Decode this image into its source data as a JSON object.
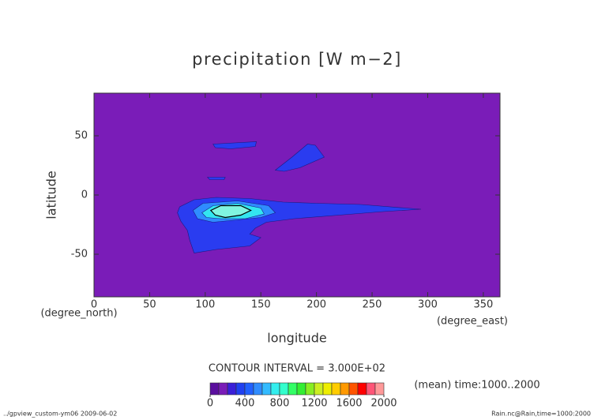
{
  "chart_data": {
    "type": "contour",
    "title": "precipitation [W m−2]",
    "x_label": "longitude",
    "y_label": "latitude",
    "x_unit": "(degree_east)",
    "y_unit": "(degree_north)",
    "xlim": [
      0,
      365
    ],
    "ylim": [
      -86,
      86
    ],
    "xticks": [
      0,
      50,
      100,
      150,
      200,
      250,
      300,
      350
    ],
    "yticks": [
      -50,
      0,
      50
    ],
    "background_color": "#7a1cb8",
    "regions": [
      {
        "color": "#2a3cf0",
        "x": [
          77,
          90,
          110,
          140,
          170,
          200,
          240,
          280,
          294,
          260,
          220,
          180,
          155,
          145,
          140,
          150,
          140,
          110,
          90,
          86,
          84,
          78,
          75
        ],
        "y": [
          -10,
          -4,
          -2,
          -3,
          -6,
          -7,
          -8,
          -11,
          -12,
          -14,
          -17,
          -20,
          -23,
          -28,
          -33,
          -36,
          -43,
          -46,
          -49,
          -38,
          -30,
          -22,
          -15
        ]
      },
      {
        "color": "#2a3cf0",
        "x": [
          107,
          146,
          145,
          123,
          109
        ],
        "y": [
          43,
          45,
          41,
          39,
          40
        ]
      },
      {
        "color": "#2a3cf0",
        "x": [
          163,
          178,
          192,
          199,
          207,
          185,
          171
        ],
        "y": [
          21,
          32,
          43,
          42,
          32,
          23,
          20
        ]
      },
      {
        "color": "#2a3cf0",
        "x": [
          102,
          118,
          117,
          104
        ],
        "y": [
          15,
          15,
          13,
          13
        ]
      },
      {
        "color": "#2f8cff",
        "x": [
          89,
          98,
          129,
          157,
          163,
          150,
          129,
          107,
          93
        ],
        "y": [
          -13,
          -7,
          -5,
          -9,
          -15,
          -19,
          -21,
          -23,
          -20
        ]
      },
      {
        "color": "#33e6f0",
        "x": [
          97,
          107,
          129,
          150,
          153,
          136,
          114,
          101
        ],
        "y": [
          -15,
          -9,
          -7,
          -11,
          -16,
          -20,
          -20,
          -19
        ]
      },
      {
        "color": "#80f5e0",
        "x": [
          105,
          114,
          132,
          141,
          132,
          118,
          109
        ],
        "y": [
          -13,
          -9,
          -9,
          -13,
          -17,
          -19,
          -17
        ]
      }
    ],
    "contour_note": "CONTOUR INTERVAL = 3.000E+02",
    "mean_note": "(mean) time:1000..2000",
    "colorbar": {
      "lim": [
        0,
        2000
      ],
      "ticks": [
        0,
        400,
        800,
        1200,
        1600,
        2000
      ],
      "colors": [
        "#5b0f9e",
        "#7a1cb8",
        "#3a1fd8",
        "#2040f0",
        "#2060ff",
        "#2f8cff",
        "#33bbff",
        "#33eeee",
        "#33ffcc",
        "#33ff66",
        "#33ee33",
        "#88ee22",
        "#ccee22",
        "#eeee00",
        "#ffcc00",
        "#ff9900",
        "#ff5500",
        "#ff0000",
        "#ff5577",
        "#ff9999"
      ]
    },
    "footer_left": "../gpview_custom-ym06  2009-06-02",
    "footer_right": "Rain.nc@Rain,time=1000:2000"
  }
}
